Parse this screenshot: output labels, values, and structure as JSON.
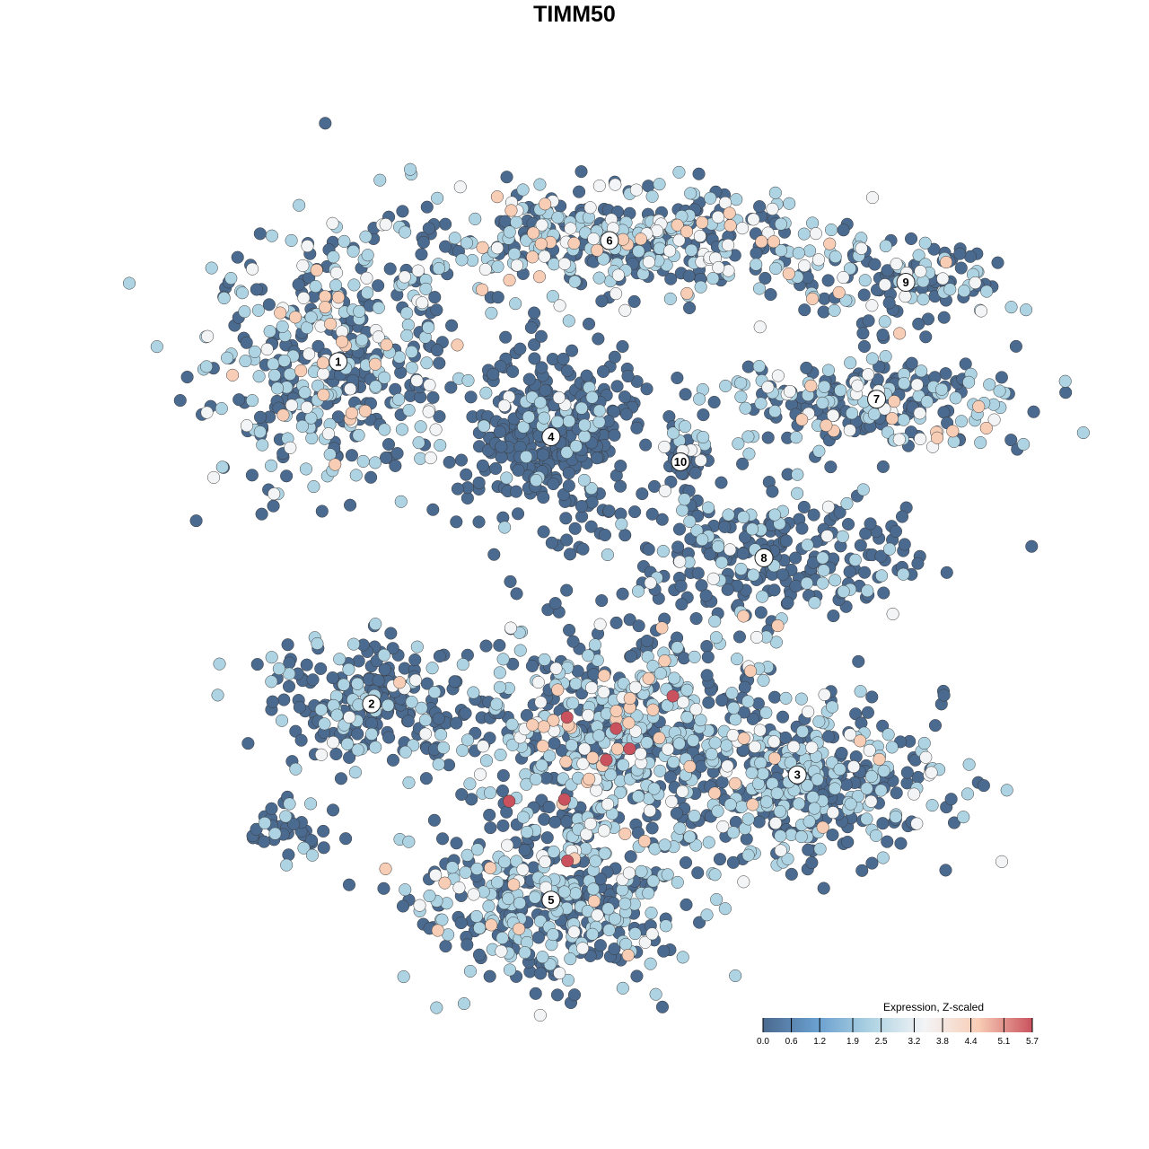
{
  "chart_data": {
    "type": "scatter",
    "title": "TIMM50",
    "xlabel": "",
    "ylabel": "",
    "axes_visible": false,
    "grid": false,
    "xlim": [
      -50,
      50
    ],
    "ylim": [
      -50,
      50
    ],
    "point_fill_note_colors": [
      "#4b6a8f",
      "#aed3e3",
      "#f3f4f6",
      "#f8cdb6",
      "#c9525e"
    ],
    "legend": {
      "title": "Expression, Z-scaled",
      "placement": "bottom-right",
      "ticks": [
        "0.0",
        "0.6",
        "1.2",
        "1.9",
        "2.5",
        "3.2",
        "3.8",
        "4.4",
        "5.1",
        "5.7"
      ],
      "range": [
        0.0,
        5.7
      ],
      "colors": [
        "#4b6a8f",
        "#6a9fcf",
        "#aed3e3",
        "#f3f4f6",
        "#f8cdb6",
        "#c9525e"
      ]
    },
    "clusters": [
      {
        "label": "1",
        "x": -31,
        "y": 25.5,
        "sx": 7.5,
        "sy": 7.5,
        "n": 420,
        "mix": [
          0.55,
          0.33,
          0.08,
          0.04,
          0
        ]
      },
      {
        "label": "6",
        "x": 1.5,
        "y": 40,
        "sx": 13,
        "sy": 3.5,
        "n": 420,
        "mix": [
          0.45,
          0.4,
          0.1,
          0.05,
          0
        ]
      },
      {
        "label": "4",
        "x": -5.5,
        "y": 16.5,
        "sx": 5,
        "sy": 5,
        "n": 330,
        "mix": [
          0.92,
          0.07,
          0.01,
          0,
          0
        ]
      },
      {
        "label": "10",
        "x": 10,
        "y": 13.5,
        "sx": 1.8,
        "sy": 2.5,
        "n": 50,
        "mix": [
          0.75,
          0.15,
          0.1,
          0,
          0
        ]
      },
      {
        "label": "9",
        "x": 37,
        "y": 35,
        "sx": 6,
        "sy": 2.5,
        "n": 130,
        "mix": [
          0.5,
          0.4,
          0.08,
          0.02,
          0
        ]
      },
      {
        "label": "7",
        "x": 33.5,
        "y": 21,
        "sx": 9,
        "sy": 3,
        "n": 240,
        "mix": [
          0.5,
          0.38,
          0.08,
          0.04,
          0
        ]
      },
      {
        "label": "8",
        "x": 20,
        "y": 2,
        "sx": 9,
        "sy": 4,
        "n": 260,
        "mix": [
          0.8,
          0.18,
          0.02,
          0,
          0.002
        ]
      },
      {
        "label": "2",
        "x": -27,
        "y": -15.5,
        "sx": 6,
        "sy": 4,
        "n": 230,
        "mix": [
          0.7,
          0.25,
          0.03,
          0.02,
          0
        ]
      },
      {
        "label": "3",
        "x": 24,
        "y": -24,
        "sx": 9,
        "sy": 5,
        "n": 430,
        "mix": [
          0.5,
          0.42,
          0.05,
          0.03,
          0
        ]
      },
      {
        "label": "5",
        "x": -5.5,
        "y": -39,
        "sx": 8,
        "sy": 5,
        "n": 430,
        "mix": [
          0.55,
          0.38,
          0.05,
          0.02,
          0
        ]
      },
      {
        "label": "",
        "x": 1.5,
        "y": -18,
        "sx": 8,
        "sy": 6,
        "n": 480,
        "mix": [
          0.4,
          0.4,
          0.1,
          0.08,
          0.02
        ]
      },
      {
        "label": "",
        "x": -36,
        "y": -31,
        "sx": 3,
        "sy": 2,
        "n": 40,
        "mix": [
          0.7,
          0.3,
          0,
          0,
          0
        ]
      }
    ]
  }
}
